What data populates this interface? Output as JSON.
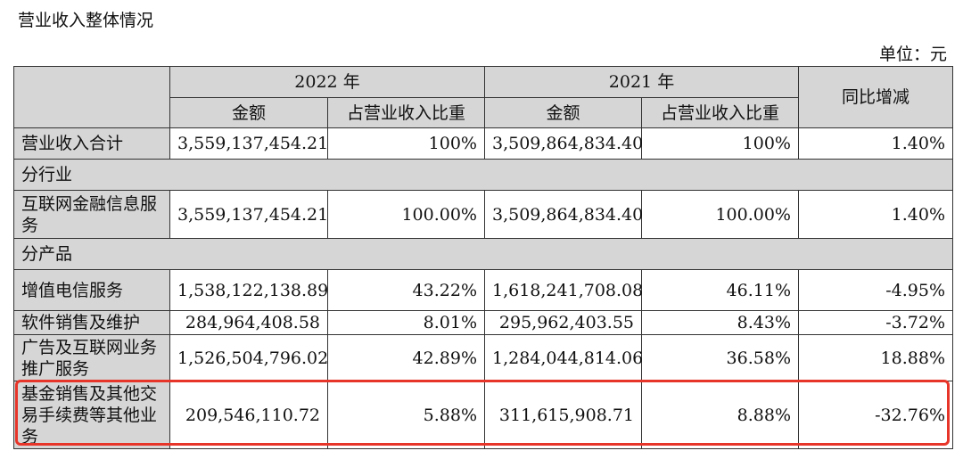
{
  "title": "营业收入整体情况",
  "unit": "单位：元",
  "header": {
    "year_2022": "2022 年",
    "year_2021": "2021 年",
    "amount": "金额",
    "share": "占营业收入比重",
    "yoy": "同比增减"
  },
  "total": {
    "label": "营业收入合计",
    "amt_2022": "3,559,137,454.21",
    "pct_2022": "100%",
    "amt_2021": "3,509,864,834.40",
    "pct_2021": "100%",
    "yoy": "1.40%"
  },
  "by_industry_label": "分行业",
  "industry": [
    {
      "label": "互联网金融信息服务",
      "amt_2022": "3,559,137,454.21",
      "pct_2022": "100.00%",
      "amt_2021": "3,509,864,834.40",
      "pct_2021": "100.00%",
      "yoy": "1.40%"
    }
  ],
  "by_product_label": "分产品",
  "products": [
    {
      "label": "增值电信服务",
      "amt_2022": "1,538,122,138.89",
      "pct_2022": "43.22%",
      "amt_2021": "1,618,241,708.08",
      "pct_2021": "46.11%",
      "yoy": "-4.95%"
    },
    {
      "label": "软件销售及维护",
      "amt_2022": "284,964,408.58",
      "pct_2022": "8.01%",
      "amt_2021": "295,962,403.55",
      "pct_2021": "8.43%",
      "yoy": "-3.72%"
    },
    {
      "label": "广告及互联网业务推广服务",
      "amt_2022": "1,526,504,796.02",
      "pct_2022": "42.89%",
      "amt_2021": "1,284,044,814.06",
      "pct_2021": "36.58%",
      "yoy": "18.88%"
    },
    {
      "label": "基金销售及其他交易手续费等其他业务",
      "amt_2022": "209,546,110.72",
      "pct_2022": "5.88%",
      "amt_2021": "311,615,908.71",
      "pct_2021": "8.88%",
      "yoy": "-32.76%"
    }
  ],
  "colors": {
    "header_bg": "#d6d6d6",
    "highlight": "#e8352a"
  }
}
